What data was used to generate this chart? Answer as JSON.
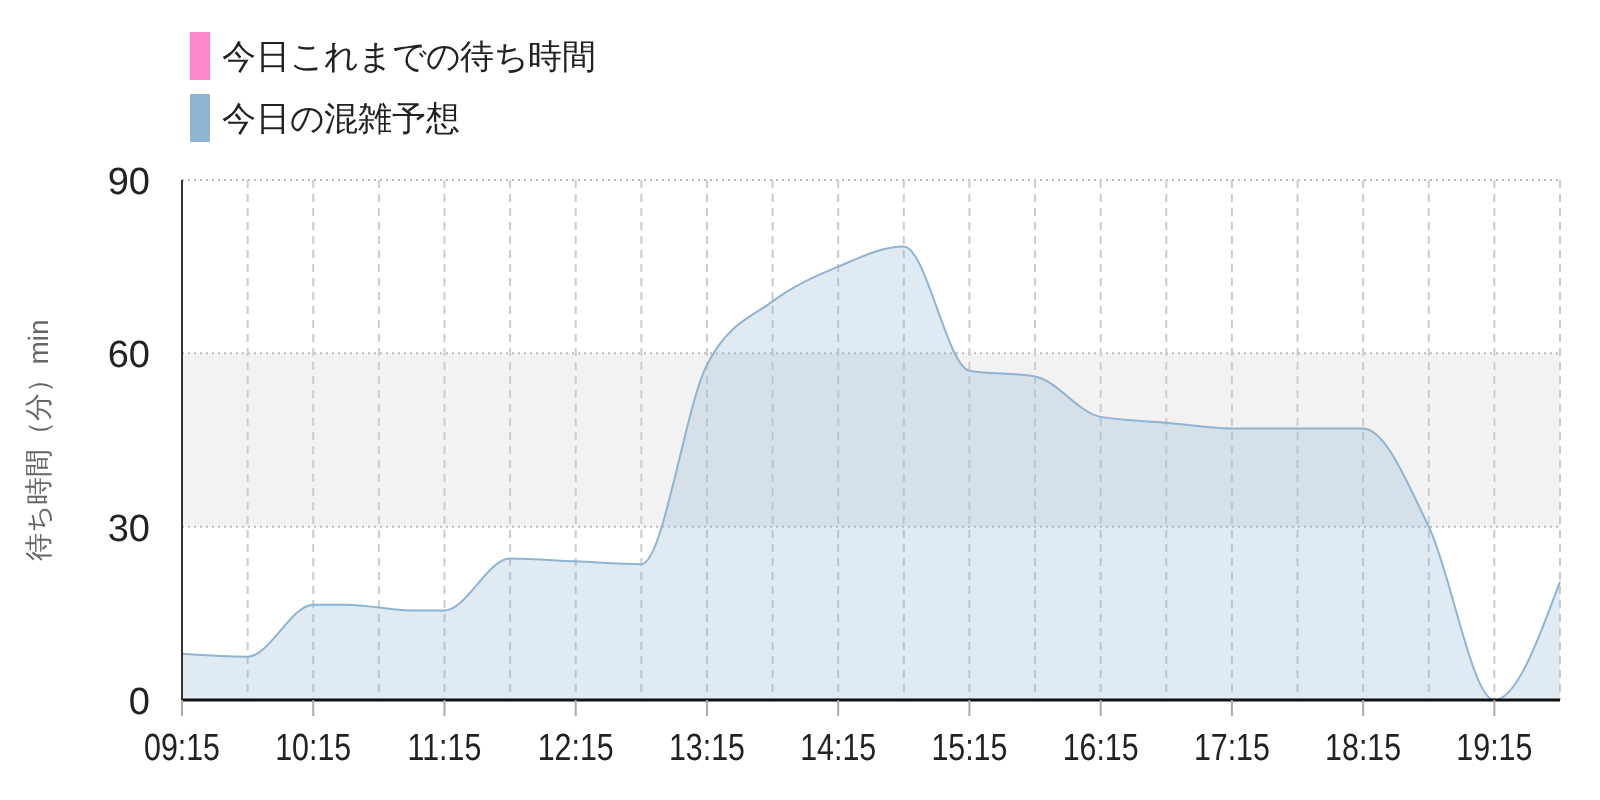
{
  "chart_data": {
    "type": "area",
    "ylabel": "待ち時間（分）min",
    "x": [
      9.25,
      9.75,
      10.25,
      10.5,
      11,
      11.25,
      11.75,
      12.25,
      12.75,
      13.25,
      13.75,
      14.25,
      14.75,
      15.25,
      15.75,
      16.25,
      16.75,
      17.25,
      17.75,
      18.25,
      18.75,
      19.25,
      19.75
    ],
    "series": [
      {
        "name": "今日これまでの待ち時間",
        "color": "#ff88cc",
        "values": [
          null,
          null,
          null,
          null,
          null,
          null,
          null,
          null,
          null,
          null,
          null,
          null,
          null,
          null,
          null,
          null,
          null,
          null,
          null,
          null,
          null,
          null,
          null
        ]
      },
      {
        "name": "今日の混雑予想",
        "color": "#8fb3d3",
        "values": [
          8,
          7.5,
          16.5,
          16.5,
          15.5,
          15.5,
          24.5,
          24,
          23.5,
          58,
          69,
          75,
          78.5,
          57,
          56,
          49,
          48,
          47,
          47,
          47,
          30,
          0,
          20.5
        ]
      }
    ],
    "xlim": [
      9.25,
      19.75
    ],
    "xticks": [
      {
        "value": 9.25,
        "label": "09:15"
      },
      {
        "value": 9.75,
        "label": null
      },
      {
        "value": 10.25,
        "label": "10:15"
      },
      {
        "value": 10.75,
        "label": null
      },
      {
        "value": 11.25,
        "label": "11:15"
      },
      {
        "value": 11.75,
        "label": null
      },
      {
        "value": 12.25,
        "label": "12:15"
      },
      {
        "value": 12.75,
        "label": null
      },
      {
        "value": 13.25,
        "label": "13:15"
      },
      {
        "value": 13.75,
        "label": null
      },
      {
        "value": 14.25,
        "label": "14:15"
      },
      {
        "value": 14.75,
        "label": null
      },
      {
        "value": 15.25,
        "label": "15:15"
      },
      {
        "value": 15.75,
        "label": null
      },
      {
        "value": 16.25,
        "label": "16:15"
      },
      {
        "value": 16.75,
        "label": null
      },
      {
        "value": 17.25,
        "label": "17:15"
      },
      {
        "value": 17.75,
        "label": null
      },
      {
        "value": 18.25,
        "label": "18:15"
      },
      {
        "value": 18.75,
        "label": null
      },
      {
        "value": 19.25,
        "label": "19:15"
      }
    ],
    "ylim": [
      0,
      90
    ],
    "yticks": [
      0,
      30,
      60,
      90
    ],
    "bands": [
      {
        "axis": "y",
        "from": 30,
        "to": 60,
        "color": "#f2f2f2"
      }
    ],
    "grid": true,
    "legend": "top left"
  }
}
